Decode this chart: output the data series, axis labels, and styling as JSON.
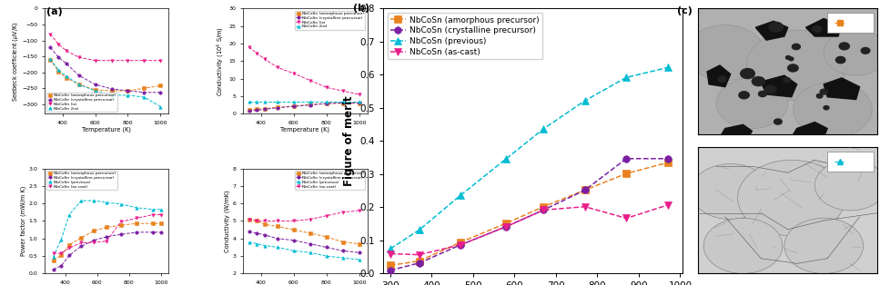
{
  "seebeck": {
    "temp": [
      325,
      375,
      425,
      500,
      600,
      700,
      800,
      900,
      1000
    ],
    "amorphous": [
      -160,
      -198,
      -218,
      -238,
      -255,
      -258,
      -258,
      -250,
      -242
    ],
    "crystalline": [
      -122,
      -153,
      -173,
      -210,
      -238,
      -252,
      -258,
      -263,
      -263
    ],
    "previous_1st": [
      -80,
      -112,
      -133,
      -153,
      -163,
      -163,
      -163,
      -163,
      -163
    ],
    "previous_2nd": [
      -158,
      -193,
      -213,
      -238,
      -258,
      -272,
      -272,
      -278,
      -308
    ]
  },
  "conductivity_top": {
    "temp": [
      325,
      375,
      425,
      500,
      600,
      700,
      800,
      900,
      1000
    ],
    "amorphous": [
      1.2,
      1.3,
      1.5,
      1.8,
      2.2,
      2.6,
      2.9,
      3.0,
      3.0
    ],
    "crystalline": [
      0.8,
      1.0,
      1.3,
      1.7,
      2.1,
      2.5,
      2.9,
      3.1,
      3.1
    ],
    "previous_1st": [
      19.0,
      17.2,
      15.5,
      13.2,
      11.5,
      9.5,
      7.5,
      6.5,
      5.5
    ],
    "previous_2nd": [
      3.5,
      3.5,
      3.5,
      3.5,
      3.5,
      3.5,
      3.5,
      3.5,
      3.5
    ]
  },
  "power_factor": {
    "temp": [
      325,
      375,
      425,
      500,
      580,
      660,
      750,
      850,
      950,
      1000
    ],
    "amorphous": [
      0.38,
      0.52,
      0.82,
      1.02,
      1.22,
      1.32,
      1.38,
      1.43,
      1.43,
      1.43
    ],
    "crystalline": [
      0.12,
      0.22,
      0.52,
      0.78,
      0.95,
      1.05,
      1.12,
      1.18,
      1.18,
      1.18
    ],
    "previous": [
      0.48,
      0.98,
      1.68,
      2.08,
      2.08,
      2.03,
      1.98,
      1.88,
      1.83,
      1.83
    ],
    "as_cast": [
      0.58,
      0.58,
      0.73,
      0.88,
      0.88,
      0.93,
      1.48,
      1.58,
      1.68,
      1.68
    ]
  },
  "conductivity_bottom": {
    "temp": [
      325,
      375,
      425,
      500,
      600,
      700,
      800,
      900,
      1000
    ],
    "amorphous": [
      5.1,
      5.0,
      4.8,
      4.7,
      4.5,
      4.3,
      4.1,
      3.8,
      3.7
    ],
    "crystalline": [
      4.4,
      4.3,
      4.2,
      4.0,
      3.9,
      3.7,
      3.5,
      3.3,
      3.2
    ],
    "previous": [
      3.8,
      3.7,
      3.6,
      3.5,
      3.3,
      3.2,
      3.0,
      2.9,
      2.8
    ],
    "as_cast": [
      5.1,
      5.0,
      5.0,
      5.0,
      5.0,
      5.1,
      5.3,
      5.5,
      5.6
    ]
  },
  "figure_of_merit": {
    "temp": [
      300,
      370,
      470,
      580,
      670,
      770,
      870,
      970
    ],
    "amorphous": [
      0.025,
      0.038,
      0.095,
      0.152,
      0.202,
      0.252,
      0.302,
      0.335
    ],
    "crystalline": [
      0.01,
      0.032,
      0.087,
      0.142,
      0.192,
      0.252,
      0.347,
      0.347
    ],
    "previous": [
      0.075,
      0.132,
      0.237,
      0.347,
      0.437,
      0.522,
      0.592,
      0.622
    ],
    "as_cast": [
      0.06,
      0.057,
      0.087,
      0.142,
      0.192,
      0.202,
      0.167,
      0.207
    ]
  },
  "colors": {
    "amorphous": "#E8821E",
    "crystalline": "#7B1FA2",
    "previous_1st": "#E91E8C",
    "previous_2nd": "#00BCD4",
    "previous": "#00BCD4",
    "as_cast": "#E91E8C"
  },
  "markers": {
    "amorphous": "s",
    "crystalline": "o",
    "previous_1st": "v",
    "previous_2nd": "^",
    "previous": "^",
    "as_cast": "v"
  }
}
